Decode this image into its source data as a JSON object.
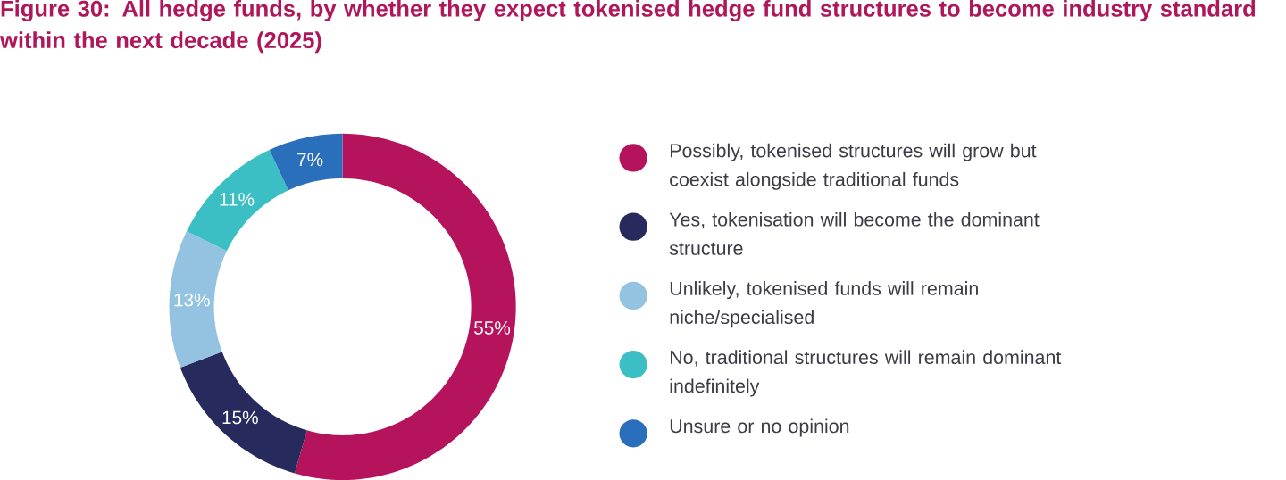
{
  "chart_data": {
    "type": "donut",
    "title": "Figure 30: All hedge funds, by whether they expect tokenised hedge fund structures to become industry standard within the next decade (2025)",
    "categories": [
      "Possibly, tokenised structures will grow but coexist alongside traditional funds",
      "Yes, tokenisation will become the dominant structure",
      "Unlikely, tokenised funds will remain niche/specialised",
      "No, traditional structures will remain dominant indefinitely",
      "Unsure or no opinion"
    ],
    "values": [
      55,
      15,
      13,
      11,
      7
    ],
    "value_labels": [
      "55%",
      "15%",
      "13%",
      "11%",
      "7%"
    ],
    "colors": [
      "#b5135c",
      "#272a5c",
      "#93c3e0",
      "#3bbfc4",
      "#2a6fbb"
    ],
    "legend": "right"
  }
}
